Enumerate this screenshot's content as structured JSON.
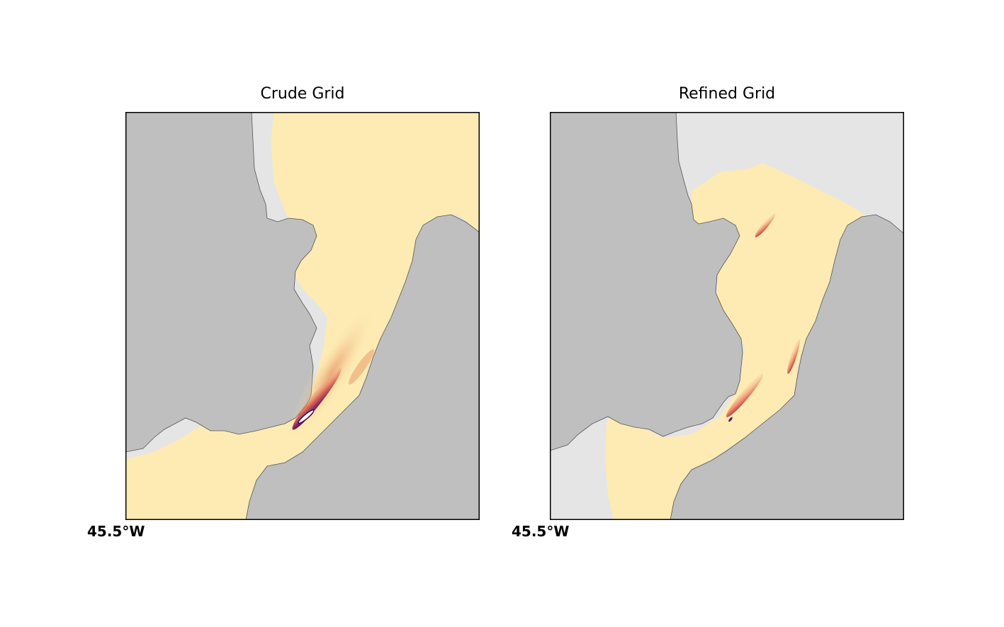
{
  "colors": {
    "land": "#bfbfbf",
    "unmodelled_water": "#e5e5e5",
    "low_value": "#fdebb3",
    "mid_value": "#e0513f",
    "high_value": "#5b1060",
    "coastline": "#555555",
    "frame": "#000000"
  },
  "panels": [
    {
      "title": "Crude Grid",
      "lon_label": "45.5°W"
    },
    {
      "title": "Refined Grid",
      "lon_label": "45.5°W"
    }
  ]
}
